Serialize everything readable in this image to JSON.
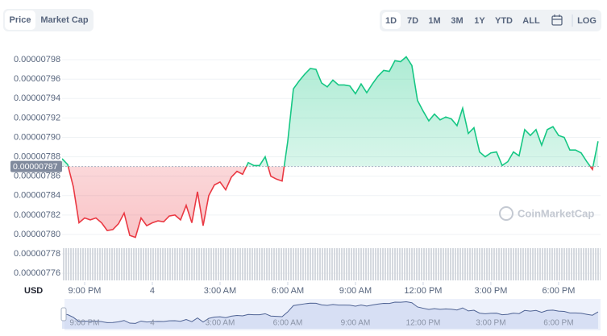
{
  "toggle": [
    "Price",
    "Market Cap"
  ],
  "ranges": [
    "1D",
    "7D",
    "1M",
    "3M",
    "1Y",
    "YTD",
    "ALL"
  ],
  "log_label": "LOG",
  "watermark": "CoinMarketCap",
  "chart_data": {
    "type": "line",
    "currency": "USD",
    "grid": true,
    "x": [
      -4,
      -3.75,
      -3.5,
      -3.25,
      -3,
      -2.75,
      -2.5,
      -2.25,
      -2,
      -1.75,
      -1.5,
      -1.25,
      -1,
      -0.75,
      -0.5,
      -0.25,
      0,
      0.25,
      0.5,
      0.75,
      1,
      1.25,
      1.5,
      1.75,
      2,
      2.25,
      2.5,
      2.75,
      3,
      3.25,
      3.5,
      3.75,
      4,
      4.25,
      4.5,
      4.75,
      5,
      5.25,
      5.5,
      5.75,
      6,
      6.25,
      6.5,
      6.75,
      7,
      7.25,
      7.5,
      7.75,
      8,
      8.25,
      8.5,
      8.75,
      9,
      9.25,
      9.5,
      9.75,
      10,
      10.25,
      10.5,
      10.75,
      11,
      11.25,
      11.5,
      11.75,
      12,
      12.25,
      12.5,
      12.75,
      13,
      13.25,
      13.5,
      13.75,
      14,
      14.25,
      14.5,
      14.75,
      15,
      15.25,
      15.5,
      15.75,
      16,
      16.25,
      16.5,
      16.75,
      17,
      17.25,
      17.5,
      17.75,
      18,
      18.25,
      18.5,
      18.75,
      19,
      19.25,
      19.5,
      19.75
    ],
    "series": [
      {
        "color": "#16c784",
        "down_color": "#ea3943",
        "values": [
          7.878e-06,
          7.872e-06,
          7.849e-06,
          7.812e-06,
          7.817e-06,
          7.815e-06,
          7.817e-06,
          7.812e-06,
          7.804e-06,
          7.805e-06,
          7.811e-06,
          7.822e-06,
          7.799e-06,
          7.797e-06,
          7.817e-06,
          7.809e-06,
          7.812e-06,
          7.814e-06,
          7.813e-06,
          7.819e-06,
          7.82e-06,
          7.815e-06,
          7.83e-06,
          7.812e-06,
          7.844e-06,
          7.809e-06,
          7.84e-06,
          7.851e-06,
          7.854e-06,
          7.846e-06,
          7.859e-06,
          7.865e-06,
          7.862e-06,
          7.874e-06,
          7.871e-06,
          7.871e-06,
          7.88e-06,
          7.86e-06,
          7.857e-06,
          7.855e-06,
          7.896e-06,
          7.95e-06,
          7.958e-06,
          7.965e-06,
          7.971e-06,
          7.97e-06,
          7.956e-06,
          7.952e-06,
          7.959e-06,
          7.954e-06,
          7.954e-06,
          7.953e-06,
          7.945e-06,
          7.955e-06,
          7.946e-06,
          7.955e-06,
          7.963e-06,
          7.969e-06,
          7.968e-06,
          7.979e-06,
          7.978e-06,
          7.983e-06,
          7.974e-06,
          7.938e-06,
          7.927e-06,
          7.917e-06,
          7.924e-06,
          7.918e-06,
          7.921e-06,
          7.919e-06,
          7.912e-06,
          7.93e-06,
          7.904e-06,
          7.91e-06,
          7.885e-06,
          7.88e-06,
          7.884e-06,
          7.885e-06,
          7.871e-06,
          7.875e-06,
          7.885e-06,
          7.881e-06,
          7.908e-06,
          7.902e-06,
          7.908e-06,
          7.892e-06,
          7.908e-06,
          7.911e-06,
          7.902e-06,
          7.9e-06,
          7.887e-06,
          7.887e-06,
          7.884e-06,
          7.875e-06,
          7.867e-06,
          7.896e-06
        ]
      }
    ],
    "reference_price": 7.87e-06,
    "reference_label": "0.00000787",
    "xlim": [
      -4,
      19.86
    ],
    "xticks": [
      {
        "value": -3,
        "label": "9:00 PM"
      },
      {
        "value": 0,
        "label": "4"
      },
      {
        "value": 3,
        "label": "3:00 AM"
      },
      {
        "value": 6,
        "label": "6:00 AM"
      },
      {
        "value": 9,
        "label": "9:00 AM"
      },
      {
        "value": 12,
        "label": "12:00 PM"
      },
      {
        "value": 15,
        "label": "3:00 PM"
      },
      {
        "value": 18,
        "label": "6:00 PM"
      }
    ],
    "ylim": [
      7.751e-06,
      8e-06
    ],
    "yticks": [
      {
        "value": 7.98e-06,
        "label": "0.00000798"
      },
      {
        "value": 7.96e-06,
        "label": "0.00000796"
      },
      {
        "value": 7.94e-06,
        "label": "0.00000794"
      },
      {
        "value": 7.92e-06,
        "label": "0.00000792"
      },
      {
        "value": 7.9e-06,
        "label": "0.00000790"
      },
      {
        "value": 7.88e-06,
        "label": "0.00000788"
      },
      {
        "value": 7.86e-06,
        "label": "0.00000786"
      },
      {
        "value": 7.84e-06,
        "label": "0.00000784"
      },
      {
        "value": 7.82e-06,
        "label": "0.00000782"
      },
      {
        "value": 7.8e-06,
        "label": "0.00000780"
      },
      {
        "value": 7.78e-06,
        "label": "0.00000778"
      },
      {
        "value": 7.76e-06,
        "label": "0.00000776"
      }
    ]
  }
}
